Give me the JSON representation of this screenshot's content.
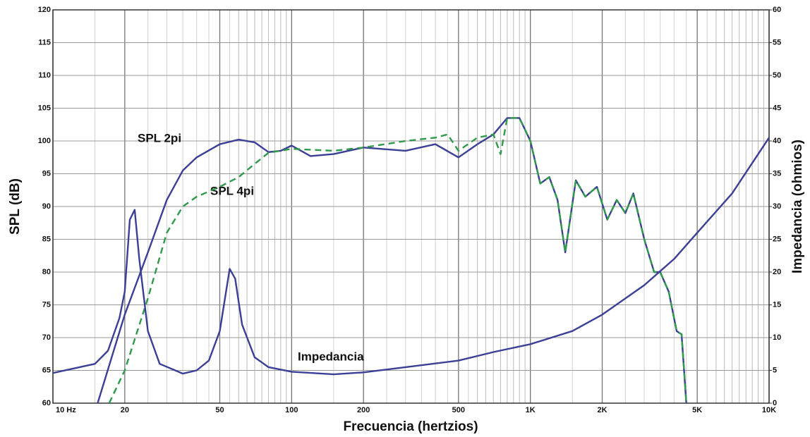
{
  "chart_data": {
    "type": "line",
    "xlabel": "Frecuencia (hertzios)",
    "ylabel": "SPL (dB)",
    "y2label": "Impedancia (ohmios)",
    "xscale": "log",
    "xlim": [
      10,
      10000
    ],
    "xticks": [
      {
        "value": 10,
        "label": "10 Hz"
      },
      20,
      50,
      100,
      200,
      500,
      {
        "value": 1000,
        "label": "1K"
      },
      {
        "value": 2000,
        "label": "2K"
      },
      {
        "value": 5000,
        "label": "5K"
      },
      {
        "value": 10000,
        "label": "10K"
      }
    ],
    "ylim": [
      60,
      120
    ],
    "yticks": [
      60,
      65,
      70,
      75,
      80,
      85,
      90,
      95,
      100,
      105,
      110,
      115,
      120
    ],
    "y2lim": [
      0,
      60
    ],
    "y2ticks": [
      0,
      5,
      10,
      15,
      20,
      25,
      30,
      35,
      40,
      45,
      50,
      55,
      60
    ],
    "grid": true,
    "annotations": [
      "SPL 2pi",
      "SPL 4pi",
      "Impedancia"
    ],
    "series": [
      {
        "name": "SPL 2pi",
        "color": "#3b3f96",
        "dashed": false,
        "x": [
          15.4,
          20,
          25,
          30,
          35,
          40,
          50,
          60,
          70,
          80,
          90,
          100,
          120,
          150,
          200,
          300,
          400,
          500,
          600,
          700,
          800,
          900,
          1000,
          1100,
          1200,
          1300,
          1400,
          1550,
          1700,
          1900,
          2100,
          2300,
          2500,
          2700,
          3000,
          3300,
          3500,
          3800,
          4100,
          4300,
          4500
        ],
        "values": [
          60,
          73.5,
          83,
          91,
          95.5,
          97.5,
          99.5,
          100.2,
          99.8,
          98.3,
          98.5,
          99.3,
          97.7,
          98,
          99,
          98.5,
          99.5,
          97.5,
          99.5,
          101,
          103.5,
          103.5,
          100,
          93.5,
          94.5,
          91,
          83,
          94,
          91.5,
          93,
          88,
          91,
          89,
          92,
          85,
          80,
          80,
          77,
          71,
          70.5,
          60
        ]
      },
      {
        "name": "SPL 4pi",
        "color": "#2e9a4a",
        "dashed": true,
        "x": [
          17.2,
          20,
          25,
          30,
          35,
          40,
          50,
          60,
          70,
          80,
          100,
          150,
          200,
          300,
          400,
          450,
          500,
          600,
          700,
          750,
          800,
          900,
          1000,
          1100,
          1200,
          1300,
          1400,
          1550,
          1700,
          1900,
          2100,
          2300,
          2500,
          2700,
          3000,
          3300,
          3500,
          3800,
          4100,
          4300,
          4500
        ],
        "values": [
          60,
          65,
          76,
          86,
          90,
          91.5,
          93,
          94.5,
          96.5,
          98.2,
          98.8,
          98.5,
          99,
          100,
          100.5,
          101,
          98.5,
          100.5,
          101,
          98,
          103.5,
          103.5,
          100,
          93.5,
          94.5,
          91,
          83,
          94,
          91.5,
          93,
          88,
          91,
          89,
          92,
          85,
          80,
          80,
          77,
          71,
          70.5,
          60
        ]
      },
      {
        "name": "Impedancia",
        "color": "#3b3f96",
        "dashed": false,
        "axis": "y2",
        "x": [
          10,
          15,
          17,
          19,
          20,
          21,
          22,
          23,
          25,
          28,
          35,
          40,
          45,
          50,
          55,
          58,
          62,
          70,
          80,
          100,
          150,
          200,
          300,
          500,
          700,
          1000,
          1500,
          2000,
          3000,
          4000,
          5000,
          7000,
          10000
        ],
        "values": [
          4.6,
          6,
          8,
          13,
          17,
          28,
          29.5,
          22,
          11,
          6,
          4.5,
          5,
          6.5,
          11,
          20.5,
          19,
          12,
          7,
          5.5,
          4.8,
          4.4,
          4.7,
          5.5,
          6.5,
          7.8,
          9,
          11,
          13.5,
          18,
          22,
          26,
          32,
          40.5
        ]
      }
    ]
  }
}
